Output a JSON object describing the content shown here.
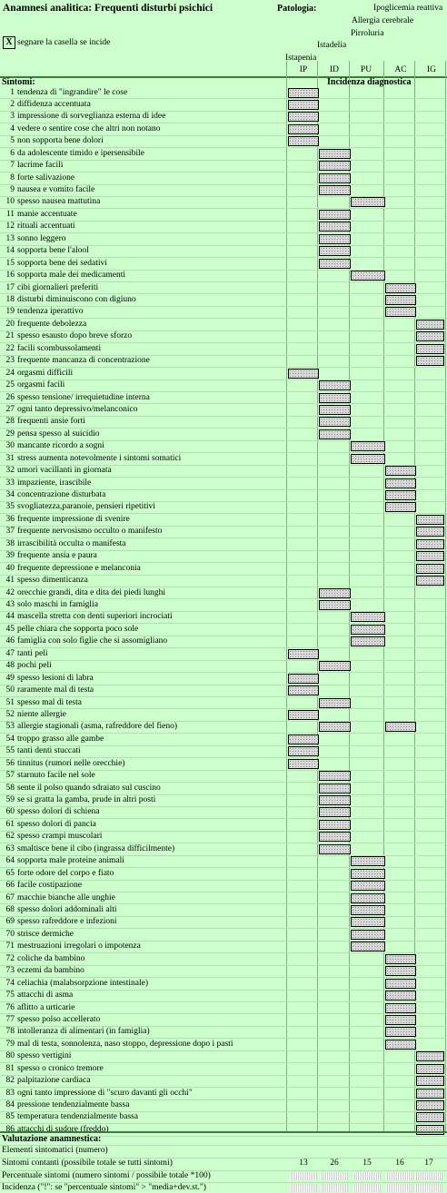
{
  "title": "Anamnesi analitica: Frequenti disturbi psichici",
  "patologia_label": "Patologia:",
  "diseases": [
    {
      "name": "Istapenia",
      "abbr": "IP"
    },
    {
      "name": "Istadelia",
      "abbr": "ID"
    },
    {
      "name": "Pirroluria",
      "abbr": "PU"
    },
    {
      "name": "Allergia cerebrale",
      "abbr": "AC"
    },
    {
      "name": "Ipoglicemia reattiva",
      "abbr": "IG"
    }
  ],
  "instruction": {
    "mark": "X",
    "text": "segnare la casella se incide"
  },
  "sintomi_label": "Sintomi:",
  "incidenza_label": "Incidenza diagnostica",
  "symptoms": [
    {
      "n": "1",
      "text": "tendenza di \"ingrandire\" le cose",
      "cols": [
        0
      ]
    },
    {
      "n": "2",
      "text": "diffidenza accentuata",
      "cols": [
        0
      ]
    },
    {
      "n": "3",
      "text": "impressione di sorveglianza esterna di idee",
      "cols": [
        0
      ]
    },
    {
      "n": "4",
      "text": "vedere o sentire cose che altri non notano",
      "cols": [
        0
      ]
    },
    {
      "n": "5",
      "text": "non sopporta bene dolori",
      "cols": [
        0
      ]
    },
    {
      "n": "6",
      "text": "da adolescente timido e ipersensibile",
      "cols": [
        1
      ]
    },
    {
      "n": "7",
      "text": "lacrime facili",
      "cols": [
        1
      ]
    },
    {
      "n": "8",
      "text": "forte salivazione",
      "cols": [
        1
      ]
    },
    {
      "n": "9",
      "text": "nausea e vomito facile",
      "cols": [
        1
      ]
    },
    {
      "n": "10",
      "text": "spesso nausea mattutina",
      "cols": [
        2
      ]
    },
    {
      "n": "11",
      "text": "manie accentuate",
      "cols": [
        1
      ]
    },
    {
      "n": "12",
      "text": "rituali accentuati",
      "cols": [
        1
      ]
    },
    {
      "n": "13",
      "text": "sonno leggero",
      "cols": [
        1
      ]
    },
    {
      "n": "14",
      "text": "sopporta bene l'alool",
      "cols": [
        1
      ]
    },
    {
      "n": "15",
      "text": "sopporta bene dei sedativi",
      "cols": [
        1
      ]
    },
    {
      "n": "16",
      "text": "sopporta male dei medicamenti",
      "cols": [
        2
      ]
    },
    {
      "n": "17",
      "text": "cibi giornalieri preferiti",
      "cols": [
        3
      ]
    },
    {
      "n": "18",
      "text": "disturbi diminuiscono con digiuno",
      "cols": [
        3
      ]
    },
    {
      "n": "19",
      "text": "tendenza iperattivo",
      "cols": [
        3
      ]
    },
    {
      "n": "20",
      "text": "frequente debolezza",
      "cols": [
        4
      ]
    },
    {
      "n": "21",
      "text": "spesso esausto dopo breve sforzo",
      "cols": [
        4
      ]
    },
    {
      "n": "22",
      "text": "facili scombussolamenti",
      "cols": [
        4
      ]
    },
    {
      "n": "23",
      "text": "frequente mancanza di concentrazione",
      "cols": [
        4
      ]
    },
    {
      "n": "24",
      "text": "orgasmi difficili",
      "cols": [
        0
      ]
    },
    {
      "n": "25",
      "text": "orgasmi facili",
      "cols": [
        1
      ]
    },
    {
      "n": "26",
      "text": "spesso tensione/ irrequietudine interna",
      "cols": [
        1
      ]
    },
    {
      "n": "27",
      "text": "ogni tanto depressivo/melanconico",
      "cols": [
        1
      ]
    },
    {
      "n": "28",
      "text": "frequenti ansie forti",
      "cols": [
        1
      ]
    },
    {
      "n": "29",
      "text": "pensa spesso al suicidio",
      "cols": [
        1
      ]
    },
    {
      "n": "30",
      "text": "mancante ricordo a sogni",
      "cols": [
        2
      ]
    },
    {
      "n": "31",
      "text": "stress aumenta notevolmente i sintomi somatici",
      "cols": [
        2
      ]
    },
    {
      "n": "32",
      "text": "umori vacillanti in giornata",
      "cols": [
        3
      ]
    },
    {
      "n": "33",
      "text": "impaziente, irascibile",
      "cols": [
        3
      ]
    },
    {
      "n": "34",
      "text": "concentrazione disturbata",
      "cols": [
        3
      ]
    },
    {
      "n": "35",
      "text": "svogliatezza,paranoie, pensieri ripetitivi",
      "cols": [
        3
      ]
    },
    {
      "n": "36",
      "text": "frequente impressione di svenire",
      "cols": [
        4
      ]
    },
    {
      "n": "37",
      "text": "frequente nervosismo occulto o manifesto",
      "cols": [
        4
      ]
    },
    {
      "n": "38",
      "text": "irrascibilità occulta o manifesta",
      "cols": [
        4
      ]
    },
    {
      "n": "39",
      "text": "frequente ansia e paura",
      "cols": [
        4
      ]
    },
    {
      "n": "40",
      "text": "frequente depressione e melanconia",
      "cols": [
        4
      ]
    },
    {
      "n": "41",
      "text": "spesso dimenticanza",
      "cols": [
        4
      ]
    },
    {
      "n": "42",
      "text": "orecchie grandi, dita e dita dei piedi lunghi",
      "cols": [
        1
      ]
    },
    {
      "n": "43",
      "text": "solo maschi in famiglia",
      "cols": [
        1
      ]
    },
    {
      "n": "44",
      "text": "mascella stretta con denti superiori incrociati",
      "cols": [
        2
      ]
    },
    {
      "n": "45",
      "text": "pelle chiara che sopporta poco sole",
      "cols": [
        2
      ]
    },
    {
      "n": "46",
      "text": "famiglia con solo figlie che si assomigliano",
      "cols": [
        2
      ]
    },
    {
      "n": "47",
      "text": "tanti peli",
      "cols": [
        0
      ]
    },
    {
      "n": "48",
      "text": "pochi peli",
      "cols": [
        1
      ]
    },
    {
      "n": "49",
      "text": "spesso lesioni di labra",
      "cols": [
        0
      ]
    },
    {
      "n": "50",
      "text": "raramente mal di testa",
      "cols": [
        0
      ]
    },
    {
      "n": "51",
      "text": "spesso mal di testa",
      "cols": [
        1
      ]
    },
    {
      "n": "52",
      "text": "niente allergie",
      "cols": [
        0
      ]
    },
    {
      "n": "53",
      "text": "allergie stagionali (asma, rafreddore del fieno)",
      "cols": [
        1,
        3
      ]
    },
    {
      "n": "54",
      "text": "troppo grasso alle gambe",
      "cols": [
        0
      ]
    },
    {
      "n": "55",
      "text": "tanti denti stuccati",
      "cols": [
        0
      ]
    },
    {
      "n": "56",
      "text": "tinnitus (rumori nelle orecchie)",
      "cols": [
        0
      ]
    },
    {
      "n": "57",
      "text": "starnuto facile nel sole",
      "cols": [
        1
      ]
    },
    {
      "n": "58",
      "text": "sente il polso quando sdraiato sul cuscino",
      "cols": [
        1
      ]
    },
    {
      "n": "59",
      "text": "se si gratta la gamba, prude in altri posti",
      "cols": [
        1
      ]
    },
    {
      "n": "60",
      "text": "spesso dolori di schiena",
      "cols": [
        1
      ]
    },
    {
      "n": "61",
      "text": "spesso dolori di pancia",
      "cols": [
        1
      ]
    },
    {
      "n": "62",
      "text": "spesso crampi muscolari",
      "cols": [
        1
      ]
    },
    {
      "n": "63",
      "text": "smaltisce bene il cibo (ingrassa difficilmente)",
      "cols": [
        1
      ]
    },
    {
      "n": "64",
      "text": "sopporta male proteine animali",
      "cols": [
        2
      ]
    },
    {
      "n": "65",
      "text": "forte odore del corpo e fiato",
      "cols": [
        2
      ]
    },
    {
      "n": "66",
      "text": "facile costipazione",
      "cols": [
        2
      ]
    },
    {
      "n": "67",
      "text": "macchie bianche alle unghie",
      "cols": [
        2
      ]
    },
    {
      "n": "68",
      "text": "spesso dolori addominali alti",
      "cols": [
        2
      ]
    },
    {
      "n": "69",
      "text": "spesso rafreddore e infezioni",
      "cols": [
        2
      ]
    },
    {
      "n": "70",
      "text": "strisce dermiche",
      "cols": [
        2
      ]
    },
    {
      "n": "71",
      "text": "mestruazioni irregolari o impotenza",
      "cols": [
        2
      ]
    },
    {
      "n": "72",
      "text": "coliche da bambino",
      "cols": [
        3
      ]
    },
    {
      "n": "73",
      "text": "eczemi da bambino",
      "cols": [
        3
      ]
    },
    {
      "n": "74",
      "text": "celiachia (malabsorpzione intestinale)",
      "cols": [
        3
      ]
    },
    {
      "n": "75",
      "text": "attacchi di asma",
      "cols": [
        3
      ]
    },
    {
      "n": "76",
      "text": "aflitto a urticarie",
      "cols": [
        3
      ]
    },
    {
      "n": "77",
      "text": "spesso polso accellerato",
      "cols": [
        3
      ]
    },
    {
      "n": "78",
      "text": "intolleranza di alimentari (in famiglia)",
      "cols": [
        3
      ]
    },
    {
      "n": "79",
      "text": "mal di testa, sonnolenza, naso stoppo, depressione dopo i pasti",
      "cols": [
        3
      ]
    },
    {
      "n": "80",
      "text": "spesso vertigini",
      "cols": [
        4
      ]
    },
    {
      "n": "81",
      "text": "spesso o cronico tremore",
      "cols": [
        4
      ]
    },
    {
      "n": "82",
      "text": "palpitazione cardiaca",
      "cols": [
        4
      ]
    },
    {
      "n": "83",
      "text": "ogni tanto impressione di \"scuro davanti gli occhi\"",
      "cols": [
        4
      ]
    },
    {
      "n": "84",
      "text": "pressione tendenzialmente bassa",
      "cols": [
        4
      ]
    },
    {
      "n": "85",
      "text": "temperatura tendenzialmente bassa",
      "cols": [
        4
      ]
    },
    {
      "n": "86",
      "text": "attacchi di sudore (freddo)",
      "cols": [
        4
      ]
    }
  ],
  "valutazione": {
    "label": "Valutazione anamnestica:",
    "rows": [
      {
        "text": "Elementi sintomatici (numero)",
        "values": null
      },
      {
        "text": "Sintomi contanti (possibile totale se tutti sintomi)",
        "values": [
          "13",
          "26",
          "15",
          "16",
          "17"
        ]
      },
      {
        "text": "Percentuale sintomi (numero sintomi / possibile totale *100)",
        "values": "hatch"
      },
      {
        "text": "Incidenza (\"!\": se \"percentuale sintomi\" > \"media+dev.st.\")",
        "values": "hatch"
      }
    ]
  }
}
